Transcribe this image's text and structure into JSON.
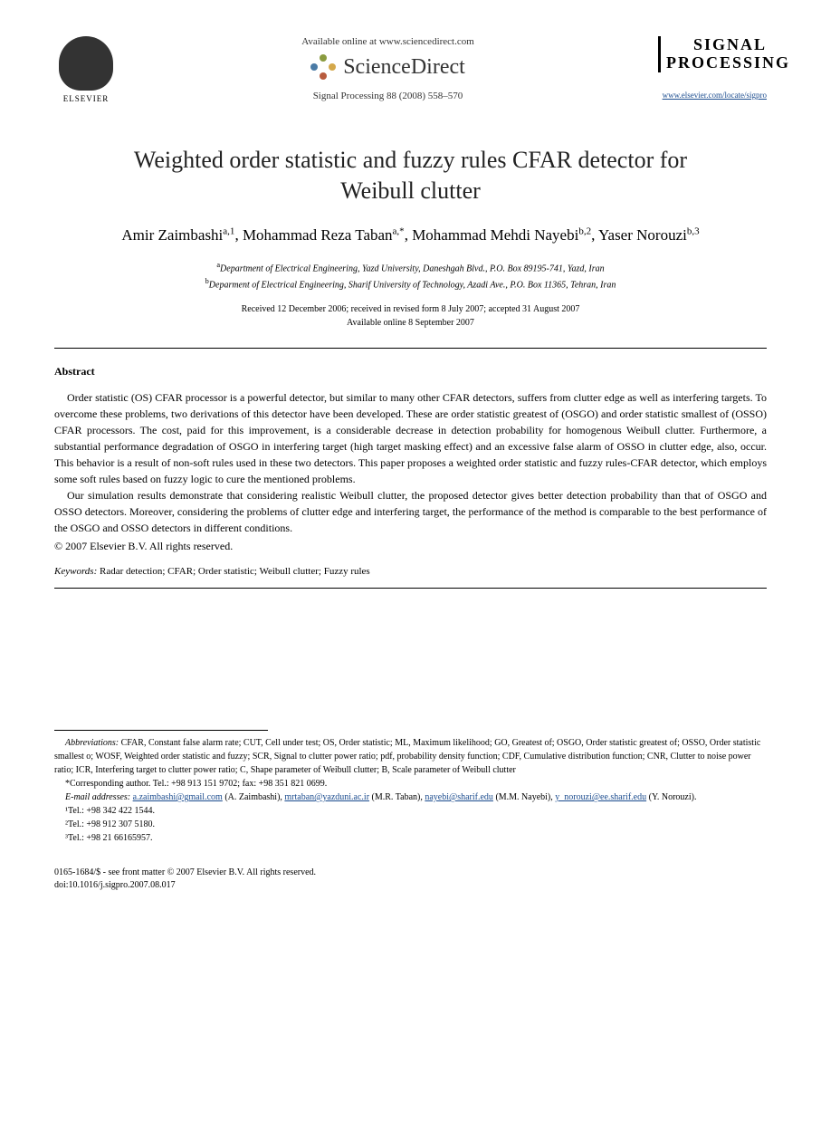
{
  "header": {
    "publisher_name": "ELSEVIER",
    "available_online": "Available online at www.sciencedirect.com",
    "platform": "ScienceDirect",
    "citation": "Signal Processing 88 (2008) 558–570",
    "journal_logo_line1": "SIGNAL",
    "journal_logo_line2": "PROCESSING",
    "journal_url": "www.elsevier.com/locate/sigpro"
  },
  "title": "Weighted order statistic and fuzzy rules CFAR detector for Weibull clutter",
  "authors_html": "Amir Zaimbashi<sup>a,1</sup>, Mohammad Reza Taban<sup>a,*</sup>, Mohammad Mehdi Nayebi<sup>b,2</sup>, Yaser Norouzi<sup>b,3</sup>",
  "affiliations": {
    "a": "Department of Electrical Engineering, Yazd University, Daneshgah Blvd., P.O. Box 89195-741, Yazd, Iran",
    "b": "Deparment of Electrical Engineering, Sharif University of Technology, Azadi Ave., P.O. Box 11365, Tehran, Iran"
  },
  "dates": {
    "line1": "Received 12 December 2006; received in revised form 8 July 2007; accepted 31 August 2007",
    "line2": "Available online 8 September 2007"
  },
  "abstract": {
    "heading": "Abstract",
    "p1": "Order statistic (OS) CFAR processor is a powerful detector, but similar to many other CFAR detectors, suffers from clutter edge as well as interfering targets. To overcome these problems, two derivations of this detector have been developed. These are order statistic greatest of (OSGO) and order statistic smallest of (OSSO) CFAR processors. The cost, paid for this improvement, is a considerable decrease in detection probability for homogenous Weibull clutter. Furthermore, a substantial performance degradation of OSGO in interfering target (high target masking effect) and an excessive false alarm of OSSO in clutter edge, also, occur. This behavior is a result of non-soft rules used in these two detectors. This paper proposes a weighted order statistic and fuzzy rules-CFAR detector, which employs some soft rules based on fuzzy logic to cure the mentioned problems.",
    "p2": "Our simulation results demonstrate that considering realistic Weibull clutter, the proposed detector gives better detection probability than that of OSGO and OSSO detectors. Moreover, considering the problems of clutter edge and interfering target, the performance of the method is comparable to the best performance of the OSGO and OSSO detectors in different conditions.",
    "copyright": "© 2007 Elsevier B.V. All rights reserved."
  },
  "keywords": {
    "label": "Keywords:",
    "text": "Radar detection; CFAR; Order statistic; Weibull clutter; Fuzzy rules"
  },
  "footnotes": {
    "abbrev_label": "Abbreviations:",
    "abbrev_text": "CFAR, Constant false alarm rate; CUT, Cell under test; OS, Order statistic; ML, Maximum likelihood; GO, Greatest of; OSGO, Order statistic greatest of; OSSO, Order statistic smallest o; WOSF, Weighted order statistic and fuzzy; SCR, Signal to clutter power ratio; pdf, probability density function; CDF, Cumulative distribution function; CNR, Clutter to noise power ratio; ICR, Interfering target to clutter power ratio; C, Shape parameter of Weibull clutter; B, Scale parameter of Weibull clutter",
    "corresponding": "*Corresponding author. Tel.: +98 913 151 9702; fax: +98 351 821 0699.",
    "email_label": "E-mail addresses:",
    "emails": [
      {
        "addr": "a.zaimbashi@gmail.com",
        "who": "(A. Zaimbashi)"
      },
      {
        "addr": "mrtaban@yazduni.ac.ir",
        "who": "(M.R. Taban)"
      },
      {
        "addr": "nayebi@sharif.edu",
        "who": "(M.M. Nayebi)"
      },
      {
        "addr": "y_norouzi@ee.sharif.edu",
        "who": "(Y. Norouzi)"
      }
    ],
    "tel1": "¹Tel.: +98 342 422 1544.",
    "tel2": "²Tel.: +98 912 307 5180.",
    "tel3": "³Tel.: +98 21 66165957."
  },
  "footer": {
    "line1": "0165-1684/$ - see front matter © 2007 Elsevier B.V. All rights reserved.",
    "line2": "doi:10.1016/j.sigpro.2007.08.017"
  },
  "colors": {
    "link": "#1a4b8e",
    "text": "#000000",
    "background": "#ffffff"
  }
}
